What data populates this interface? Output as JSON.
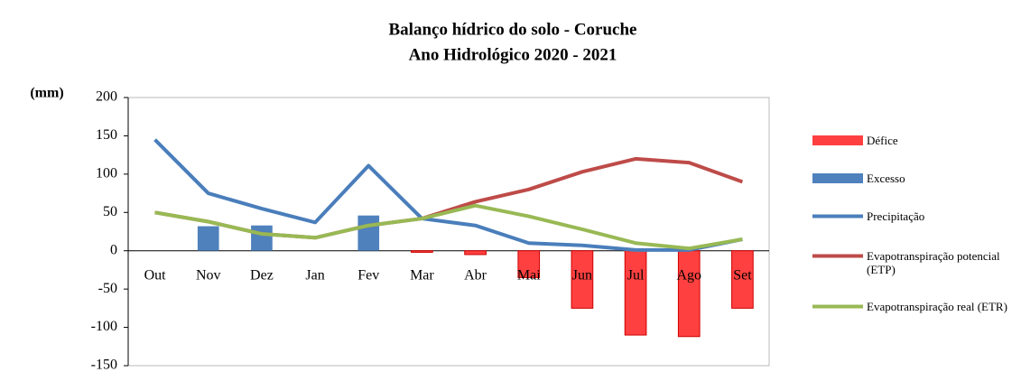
{
  "chart_data": {
    "type": "bar_line",
    "title": "Balanço hídrico do solo - Coruche",
    "subtitle": "Ano Hidrológico 2020 - 2021",
    "y_label": "(mm)",
    "categories": [
      "Out",
      "Nov",
      "Dez",
      "Jan",
      "Fev",
      "Mar",
      "Abr",
      "Mai",
      "Jun",
      "Jul",
      "Ago",
      "Set"
    ],
    "ylim": [
      -150,
      200
    ],
    "yticks": [
      -150,
      -100,
      -50,
      0,
      50,
      100,
      150,
      200
    ],
    "grid": false,
    "series": [
      {
        "name": "Défice",
        "kind": "bar",
        "color": "#ff4040",
        "values": [
          0,
          0,
          0,
          0,
          0,
          -2,
          -5,
          -35,
          -75,
          -110,
          -112,
          -75
        ]
      },
      {
        "name": "Excesso",
        "kind": "bar",
        "color": "#4f81bd",
        "values": [
          0,
          32,
          33,
          0,
          46,
          0,
          0,
          0,
          0,
          0,
          0,
          0
        ]
      },
      {
        "name": "Precipitação",
        "kind": "line",
        "color": "#4a7ebb",
        "values": [
          145,
          75,
          55,
          37,
          111,
          42,
          33,
          10,
          7,
          1,
          1,
          15
        ]
      },
      {
        "name": "Evapotranspiração potencial (ETP)",
        "kind": "line",
        "color": "#be4b48",
        "values": [
          50,
          38,
          22,
          17,
          33,
          42,
          64,
          80,
          103,
          120,
          115,
          90
        ]
      },
      {
        "name": "Evapotranspiração real (ETR)",
        "kind": "line",
        "color": "#98b954",
        "values": [
          50,
          38,
          22,
          17,
          33,
          42,
          59,
          45,
          28,
          10,
          3,
          15
        ]
      }
    ]
  }
}
